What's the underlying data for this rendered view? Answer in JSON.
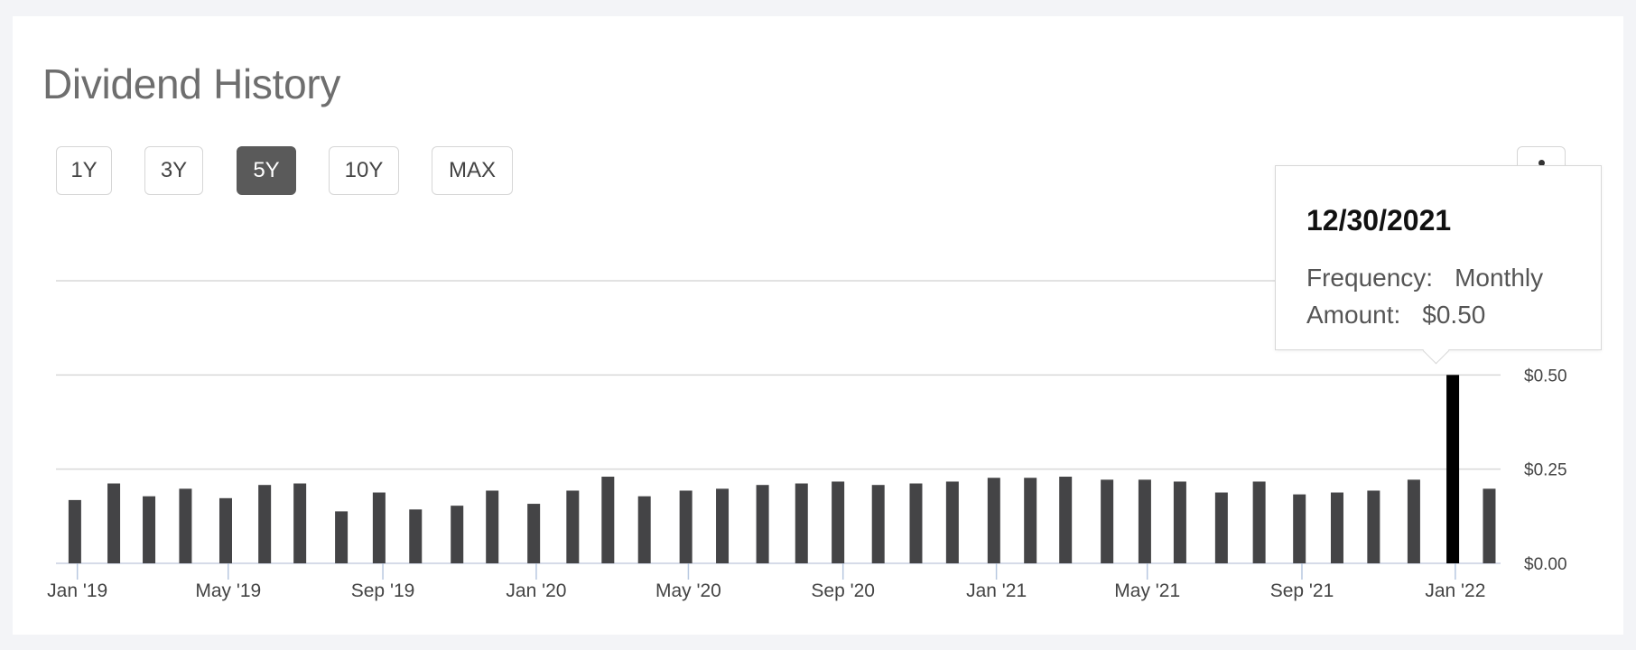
{
  "title": "Dividend History",
  "range_buttons": [
    {
      "label": "1Y",
      "active": false
    },
    {
      "label": "3Y",
      "active": false
    },
    {
      "label": "5Y",
      "active": true
    },
    {
      "label": "10Y",
      "active": false
    },
    {
      "label": "MAX",
      "active": false
    }
  ],
  "tooltip": {
    "date": "12/30/2021",
    "frequency_label": "Frequency:",
    "frequency_value": "Monthly",
    "amount_label": "Amount:",
    "amount_value": "$0.50"
  },
  "colors": {
    "bar": "#444446",
    "bar_highlight": "#000000",
    "active_button": "#5a5a5a",
    "grid": "#d9d9d9"
  },
  "chart_data": {
    "type": "bar",
    "title": "",
    "xlabel": "",
    "ylabel": "",
    "ylim": [
      0,
      0.75
    ],
    "y_ticks": [
      {
        "value": 0.0,
        "label": "$0.00"
      },
      {
        "value": 0.25,
        "label": "$0.25"
      },
      {
        "value": 0.5,
        "label": "$0.50"
      }
    ],
    "x_range": [
      "2018-12-15",
      "2022-02-06"
    ],
    "x_ticks": [
      {
        "date": "2019-01-01",
        "label": "Jan '19"
      },
      {
        "date": "2019-05-01",
        "label": "May '19"
      },
      {
        "date": "2019-09-01",
        "label": "Sep '19"
      },
      {
        "date": "2020-01-01",
        "label": "Jan '20"
      },
      {
        "date": "2020-05-01",
        "label": "May '20"
      },
      {
        "date": "2020-09-01",
        "label": "Sep '20"
      },
      {
        "date": "2021-01-01",
        "label": "Jan '21"
      },
      {
        "date": "2021-05-01",
        "label": "May '21"
      },
      {
        "date": "2021-09-01",
        "label": "Sep '21"
      },
      {
        "date": "2022-01-01",
        "label": "Jan '22"
      }
    ],
    "grid": true,
    "highlighted_date": "2021-12-30",
    "series": [
      {
        "points": [
          {
            "date": "2018-12-30",
            "value": 0.168
          },
          {
            "date": "2019-01-30",
            "value": 0.212
          },
          {
            "date": "2019-02-27",
            "value": 0.178
          },
          {
            "date": "2019-03-28",
            "value": 0.198
          },
          {
            "date": "2019-04-29",
            "value": 0.173
          },
          {
            "date": "2019-05-30",
            "value": 0.208
          },
          {
            "date": "2019-06-27",
            "value": 0.212
          },
          {
            "date": "2019-07-30",
            "value": 0.138
          },
          {
            "date": "2019-08-29",
            "value": 0.188
          },
          {
            "date": "2019-09-27",
            "value": 0.143
          },
          {
            "date": "2019-10-30",
            "value": 0.153
          },
          {
            "date": "2019-11-27",
            "value": 0.193
          },
          {
            "date": "2019-12-30",
            "value": 0.158
          },
          {
            "date": "2020-01-30",
            "value": 0.193
          },
          {
            "date": "2020-02-27",
            "value": 0.23
          },
          {
            "date": "2020-03-27",
            "value": 0.178
          },
          {
            "date": "2020-04-29",
            "value": 0.193
          },
          {
            "date": "2020-05-28",
            "value": 0.198
          },
          {
            "date": "2020-06-29",
            "value": 0.208
          },
          {
            "date": "2020-07-30",
            "value": 0.212
          },
          {
            "date": "2020-08-28",
            "value": 0.217
          },
          {
            "date": "2020-09-29",
            "value": 0.208
          },
          {
            "date": "2020-10-29",
            "value": 0.212
          },
          {
            "date": "2020-11-27",
            "value": 0.217
          },
          {
            "date": "2020-12-30",
            "value": 0.227
          },
          {
            "date": "2021-01-28",
            "value": 0.227
          },
          {
            "date": "2021-02-25",
            "value": 0.23
          },
          {
            "date": "2021-03-30",
            "value": 0.222
          },
          {
            "date": "2021-04-29",
            "value": 0.222
          },
          {
            "date": "2021-05-27",
            "value": 0.217
          },
          {
            "date": "2021-06-29",
            "value": 0.188
          },
          {
            "date": "2021-07-29",
            "value": 0.217
          },
          {
            "date": "2021-08-30",
            "value": 0.183
          },
          {
            "date": "2021-09-29",
            "value": 0.188
          },
          {
            "date": "2021-10-28",
            "value": 0.193
          },
          {
            "date": "2021-11-29",
            "value": 0.222
          },
          {
            "date": "2021-12-30",
            "value": 0.5
          },
          {
            "date": "2022-01-28",
            "value": 0.198
          }
        ]
      }
    ]
  }
}
